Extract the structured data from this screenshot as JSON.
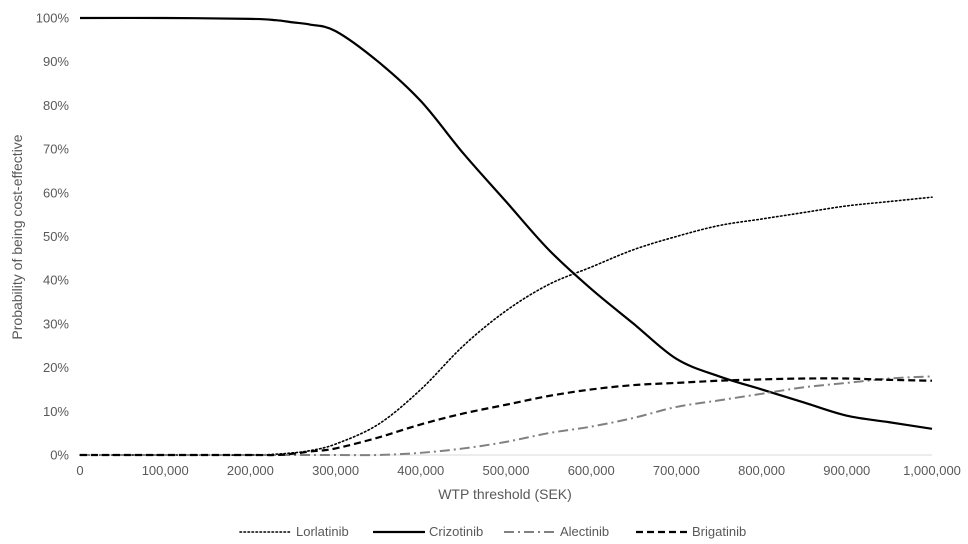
{
  "chart_data": {
    "type": "line",
    "xlabel": "WTP threshold (SEK)",
    "ylabel": "Probability of being cost-effective",
    "xlim": [
      0,
      1000000
    ],
    "ylim": [
      0,
      1
    ],
    "grid": false,
    "legend_position": "bottom",
    "x_ticks": [
      0,
      100000,
      200000,
      300000,
      400000,
      500000,
      600000,
      700000,
      800000,
      900000,
      1000000
    ],
    "x_tick_labels": [
      "0",
      "100,000",
      "200,000",
      "300,000",
      "400,000",
      "500,000",
      "600,000",
      "700,000",
      "800,000",
      "900,000",
      "1,000,000"
    ],
    "y_ticks": [
      0,
      0.1,
      0.2,
      0.3,
      0.4,
      0.5,
      0.6,
      0.7,
      0.8,
      0.9,
      1.0
    ],
    "y_tick_labels": [
      "0%",
      "10%",
      "20%",
      "30%",
      "40%",
      "50%",
      "60%",
      "70%",
      "80%",
      "90%",
      "100%"
    ],
    "x": [
      0,
      100000,
      200000,
      230000,
      250000,
      270000,
      300000,
      350000,
      400000,
      450000,
      500000,
      550000,
      600000,
      650000,
      700000,
      750000,
      800000,
      850000,
      900000,
      950000,
      1000000
    ],
    "series": [
      {
        "name": "Lorlatinib",
        "style": "dotted",
        "color": "#000000",
        "values": [
          0,
          0,
          0,
          0.002,
          0.005,
          0.01,
          0.025,
          0.07,
          0.15,
          0.25,
          0.33,
          0.39,
          0.43,
          0.47,
          0.5,
          0.525,
          0.54,
          0.555,
          0.57,
          0.58,
          0.59
        ]
      },
      {
        "name": "Crizotinib",
        "style": "solid",
        "color": "#000000",
        "values": [
          1.0,
          1.0,
          0.998,
          0.995,
          0.99,
          0.985,
          0.97,
          0.9,
          0.81,
          0.69,
          0.58,
          0.47,
          0.38,
          0.3,
          0.22,
          0.18,
          0.15,
          0.12,
          0.09,
          0.075,
          0.06
        ]
      },
      {
        "name": "Alectinib",
        "style": "dashdot",
        "color": "#808080",
        "values": [
          0,
          0,
          0,
          0,
          0,
          0,
          0,
          0,
          0.005,
          0.015,
          0.03,
          0.05,
          0.065,
          0.085,
          0.11,
          0.125,
          0.14,
          0.155,
          0.165,
          0.175,
          0.18
        ]
      },
      {
        "name": "Brigatinib",
        "style": "dashed",
        "color": "#000000",
        "values": [
          0,
          0,
          0,
          0,
          0.003,
          0.008,
          0.015,
          0.04,
          0.07,
          0.095,
          0.115,
          0.135,
          0.15,
          0.16,
          0.165,
          0.17,
          0.173,
          0.175,
          0.175,
          0.172,
          0.17
        ]
      }
    ]
  }
}
